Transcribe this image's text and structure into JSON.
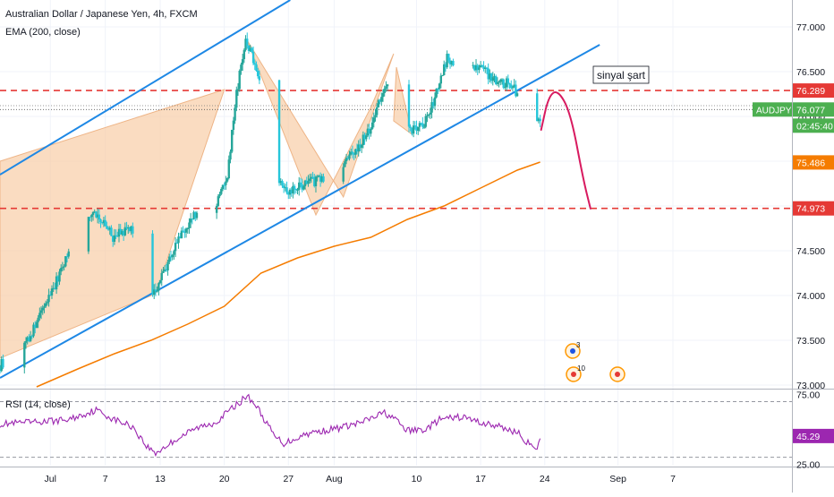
{
  "header": {
    "symbol_line": "Australian Dollar / Japanese Yen, 4h, FXCM",
    "indicator_line": "EMA (200, close)"
  },
  "rsi_panel": {
    "label": "RSI (14, close)"
  },
  "annotation": {
    "signal_text": "sinyal şart"
  },
  "event_markers": [
    {
      "label": "3",
      "color": "#1e53e5"
    },
    {
      "label": "10",
      "color": "#e53935"
    },
    {
      "label": "",
      "color": "#e53935"
    }
  ],
  "colors": {
    "up": "#26a69a",
    "down": "#26c6da",
    "channel": "#1e88e5",
    "ema": "#f57c00",
    "resistance": "#e53935",
    "pattern_fill": "#f8c9a0",
    "rsi": "#9c27b0",
    "projection": "#d81b60"
  },
  "price_badges": [
    {
      "id": "badge-76289",
      "text": "76.289",
      "value": 76.289,
      "color": "#e53935",
      "text_color": "#ffffff"
    },
    {
      "id": "badge-76077",
      "text": "76.077",
      "value": 76.077,
      "color": "#4caf50",
      "text_color": "#ffffff"
    },
    {
      "id": "badge-timer",
      "text": "02:45:40",
      "value": 75.93,
      "color": "#4caf50",
      "text_color": "#ffffff"
    },
    {
      "id": "badge-75486",
      "text": "75.486",
      "value": 75.486,
      "color": "#f57c00",
      "text_color": "#ffffff"
    },
    {
      "id": "badge-74973",
      "text": "74.973",
      "value": 74.973,
      "color": "#e53935",
      "text_color": "#ffffff"
    }
  ],
  "symbol_tag": {
    "text": "AUDJPY",
    "value": 76.077
  },
  "rsi_badge": {
    "text": "45.29",
    "value": 45.29
  },
  "chart_data": {
    "type": "candlestick",
    "symbol": "AUDJPY",
    "timeframe": "4h",
    "x_ticks": [
      {
        "label": "Jul",
        "day": 1
      },
      {
        "label": "7",
        "day": 7
      },
      {
        "label": "13",
        "day": 13
      },
      {
        "label": "20",
        "day": 20
      },
      {
        "label": "27",
        "day": 27
      },
      {
        "label": "Aug",
        "day": 32
      },
      {
        "label": "10",
        "day": 41
      },
      {
        "label": "17",
        "day": 48
      },
      {
        "label": "24",
        "day": 55
      },
      {
        "label": "Sep",
        "day": 63
      },
      {
        "label": "7",
        "day": 69
      }
    ],
    "x_range_days": [
      -4.5,
      82
    ],
    "y_range": [
      72.97,
      77.3
    ],
    "y_ticks": [
      {
        "label": "77.000",
        "value": 77.0
      },
      {
        "label": "76.500",
        "value": 76.5
      },
      {
        "label": "76.000",
        "value": 76.0
      },
      {
        "label": "75.500",
        "value": 75.5
      },
      {
        "label": "75.000",
        "value": 75.0
      },
      {
        "label": "74.500",
        "value": 74.5
      },
      {
        "label": "74.000",
        "value": 74.0
      },
      {
        "label": "73.500",
        "value": 73.5
      },
      {
        "label": "73.000",
        "value": 73.0
      }
    ],
    "price_path_key_points": [
      [
        -4.5,
        73.2
      ],
      [
        -1,
        73.55
      ],
      [
        2,
        74.2
      ],
      [
        4,
        74.7
      ],
      [
        6,
        74.95
      ],
      [
        8,
        74.65
      ],
      [
        10,
        74.75
      ],
      [
        11.5,
        74.1
      ],
      [
        12.5,
        74.02
      ],
      [
        15,
        74.6
      ],
      [
        17,
        74.9
      ],
      [
        19,
        74.95
      ],
      [
        20.5,
        75.35
      ],
      [
        21.5,
        76.25
      ],
      [
        22.5,
        76.85
      ],
      [
        23.5,
        76.6
      ],
      [
        24.3,
        76.3
      ],
      [
        25,
        75.9
      ],
      [
        26,
        75.35
      ],
      [
        27,
        75.15
      ],
      [
        29,
        75.25
      ],
      [
        31,
        75.3
      ],
      [
        32.5,
        75.4
      ],
      [
        34,
        75.55
      ],
      [
        36,
        75.85
      ],
      [
        37.2,
        76.2
      ],
      [
        38.2,
        76.35
      ],
      [
        39.5,
        76.05
      ],
      [
        40.5,
        75.85
      ],
      [
        42,
        75.9
      ],
      [
        43.5,
        76.3
      ],
      [
        44.5,
        76.65
      ],
      [
        46,
        76.6
      ],
      [
        48,
        76.55
      ],
      [
        50,
        76.4
      ],
      [
        51.5,
        76.35
      ],
      [
        52.5,
        76.2
      ],
      [
        53.3,
        75.95
      ],
      [
        54,
        75.8
      ],
      [
        54.6,
        75.98
      ]
    ],
    "ema_200": [
      [
        -0.5,
        72.98
      ],
      [
        4,
        73.18
      ],
      [
        8,
        73.35
      ],
      [
        12,
        73.5
      ],
      [
        16,
        73.68
      ],
      [
        20,
        73.88
      ],
      [
        24,
        74.25
      ],
      [
        28,
        74.42
      ],
      [
        32,
        74.55
      ],
      [
        36,
        74.65
      ],
      [
        40,
        74.85
      ],
      [
        44,
        75.0
      ],
      [
        48,
        75.2
      ],
      [
        52,
        75.4
      ],
      [
        54.5,
        75.49
      ]
    ],
    "channel_lines": [
      {
        "name": "upper",
        "points": [
          [
            -4.5,
            75.35
          ],
          [
            27.2,
            77.3
          ]
        ]
      },
      {
        "name": "lower",
        "points": [
          [
            -4.5,
            73.08
          ],
          [
            61,
            76.8
          ]
        ]
      }
    ],
    "horizontal_levels": [
      76.289,
      74.973
    ],
    "harmonic_patterns": [
      {
        "points": [
          [
            -4.5,
            75.5
          ],
          [
            20,
            76.3
          ],
          [
            12.5,
            74.02
          ],
          [
            -4.5,
            73.3
          ]
        ]
      },
      {
        "points": [
          [
            22.5,
            76.85
          ],
          [
            30,
            74.9
          ],
          [
            36,
            76.1
          ],
          [
            38.5,
            76.7
          ],
          [
            33,
            75.1
          ]
        ]
      },
      {
        "points": [
          [
            38.8,
            76.55
          ],
          [
            40.5,
            75.8
          ],
          [
            38.5,
            75.95
          ]
        ]
      }
    ],
    "projection_curve": [
      [
        54.6,
        75.85
      ],
      [
        55.4,
        76.22
      ],
      [
        56.4,
        76.3
      ],
      [
        57.8,
        76.05
      ],
      [
        59.2,
        75.3
      ],
      [
        60,
        74.97
      ]
    ],
    "rsi": {
      "period": 14,
      "y_range": [
        24,
        78
      ],
      "levels": [
        70,
        30
      ],
      "last_value": 45.29,
      "key_points": [
        [
          -4.5,
          54
        ],
        [
          -1,
          55
        ],
        [
          3,
          57
        ],
        [
          6,
          64
        ],
        [
          8,
          57
        ],
        [
          10,
          52
        ],
        [
          11.5,
          38
        ],
        [
          12.5,
          33
        ],
        [
          15,
          44
        ],
        [
          17,
          51
        ],
        [
          19,
          55
        ],
        [
          21,
          66
        ],
        [
          22.5,
          74
        ],
        [
          23.5,
          67
        ],
        [
          24.3,
          58
        ],
        [
          25.5,
          45
        ],
        [
          26.5,
          40
        ],
        [
          29,
          47
        ],
        [
          32.5,
          51
        ],
        [
          35,
          55
        ],
        [
          37.5,
          62
        ],
        [
          38.5,
          58
        ],
        [
          40,
          49
        ],
        [
          42,
          50
        ],
        [
          43.5,
          57
        ],
        [
          46,
          59
        ],
        [
          48,
          55
        ],
        [
          50,
          52
        ],
        [
          52,
          48
        ],
        [
          53.5,
          38
        ],
        [
          54,
          34
        ],
        [
          54.6,
          45.29
        ]
      ]
    }
  }
}
